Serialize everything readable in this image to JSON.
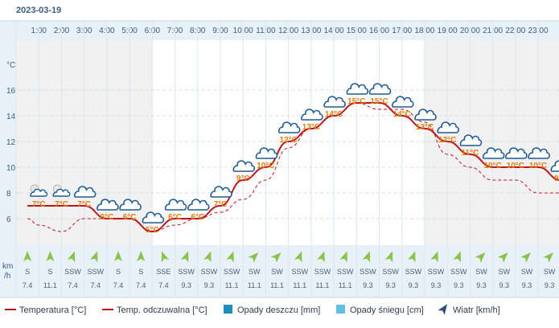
{
  "chart_data": {
    "type": "line",
    "date": "2023-03-19",
    "hours": [
      "1:00",
      "2:00",
      "3:00",
      "4:00",
      "5:00",
      "6:00",
      "7:00",
      "8:00",
      "9:00",
      "10:00",
      "11:00",
      "12:00",
      "13:00",
      "14:00",
      "15:00",
      "16:00",
      "17:00",
      "18:00",
      "19:00",
      "20:00",
      "21:00",
      "22:00",
      "23:00"
    ],
    "y_unit": "°C",
    "y_ticks": [
      6,
      8,
      10,
      12,
      14,
      16
    ],
    "ylim": [
      4,
      19
    ],
    "series": [
      {
        "name": "Temperatura [°C]",
        "style": "solid",
        "color": "#c0161b",
        "x": [
          0.5,
          1,
          2,
          3,
          4,
          5,
          6,
          7,
          8,
          9,
          10,
          11,
          12,
          13,
          14,
          15,
          16,
          17,
          18,
          19,
          20,
          21,
          22,
          23,
          24
        ],
        "values": [
          7,
          7,
          7,
          7,
          6,
          6,
          5,
          6,
          6,
          7,
          9,
          10,
          12,
          13,
          14,
          15,
          15,
          14,
          13,
          12,
          11,
          10,
          10,
          10,
          9
        ]
      },
      {
        "name": "Temp. odczuwalna [°C]",
        "style": "dashed",
        "color": "#c0161b",
        "x": [
          0.5,
          1,
          2,
          3,
          4,
          5,
          6,
          7,
          8,
          9,
          10,
          11,
          12,
          13,
          14,
          15,
          16,
          17,
          18,
          19,
          20,
          21,
          22,
          23,
          24
        ],
        "values": [
          6,
          5.5,
          5,
          6,
          6,
          6,
          5,
          5.5,
          6,
          6.5,
          7.5,
          9,
          11.5,
          13,
          14,
          15,
          14.5,
          14.5,
          13.5,
          11,
          10,
          9,
          9,
          8,
          8
        ]
      }
    ],
    "temp_labels": [
      "7°C",
      "7°C",
      "7°C",
      "6°C",
      "6°C",
      "5°C",
      "6°C",
      "6°C",
      "7°C",
      "9°C",
      "10°C",
      "12°C",
      "13°C",
      "14°C",
      "15°C",
      "15°C",
      "14°C",
      "13°C",
      "12°C",
      "11°C",
      "10°C",
      "10°C",
      "10°C",
      "9°C"
    ],
    "temp_label_values": [
      7,
      7,
      7,
      6,
      6,
      5,
      6,
      6,
      7,
      9,
      10,
      12,
      13,
      14,
      15,
      15,
      14,
      13,
      12,
      11,
      10,
      10,
      10,
      9
    ],
    "weather_icons": [
      "partly-cloudy-night-icon",
      "partly-cloudy-night-icon",
      "cloud-icon",
      "cloud-icon",
      "cloud-icon",
      "cloud-icon",
      "cloud-icon",
      "cloud-icon",
      "cloud-icon",
      "cloud-icon",
      "cloud-icon",
      "cloud-icon",
      "cloud-icon",
      "cloud-icon",
      "cloud-icon",
      "cloud-icon",
      "cloud-icon",
      "cloud-icon",
      "cloud-icon",
      "cloud-icon",
      "cloud-icon",
      "cloud-icon",
      "cloud-icon",
      "cloud-icon"
    ],
    "wind": {
      "unit_line1": "km",
      "unit_line2": "/h",
      "directions": [
        "S",
        "S",
        "SSW",
        "SSW",
        "S",
        "S",
        "SSE",
        "SSW",
        "SSW",
        "SSW",
        "SW",
        "SW",
        "SSW",
        "SSW",
        "SSW",
        "SSW",
        "SSW",
        "SSW",
        "SSW",
        "SSW",
        "SW",
        "SW",
        "SW",
        "SW"
      ],
      "arrow_angles": [
        0,
        0,
        20,
        20,
        0,
        0,
        -20,
        20,
        20,
        20,
        45,
        45,
        20,
        20,
        20,
        20,
        20,
        20,
        20,
        20,
        45,
        45,
        45,
        45
      ],
      "speeds": [
        "7.4",
        "11.1",
        "7.4",
        "7.4",
        "7.4",
        "7.4",
        "7.4",
        "9.3",
        "9.3",
        "11.1",
        "11.1",
        "11.1",
        "11.1",
        "11.1",
        "11.1",
        "9.3",
        "9.3",
        "9.3",
        "9.3",
        "9.3",
        "9.3",
        "9.3",
        "9.3",
        "9.3"
      ]
    },
    "night_hours": [
      0,
      1,
      2,
      3,
      4,
      5,
      18,
      19,
      20,
      21,
      22,
      23
    ],
    "legend": [
      "Temperatura [°C]",
      "Temp. odczuwalna [°C]",
      "Opady deszczu [mm]",
      "Opady śniegu [cm]",
      "Wiatr [km/h]"
    ],
    "legend_position": "bottom"
  },
  "colors": {
    "header_bg": "#e8f1f8",
    "night_bg": "#f1f1f1",
    "day_bg": "#ffffff",
    "wind_bg": "#e8f1f8",
    "axis_text": "#3b5e83",
    "temp_line": "#c0161b",
    "label_orange": "#e07d10",
    "cloud_stroke": "#1e5a95",
    "arrow": "#8bc34a",
    "rain": "#1e8ebd",
    "snow": "#63bfe1",
    "wind_icon": "#2c4e7a"
  }
}
